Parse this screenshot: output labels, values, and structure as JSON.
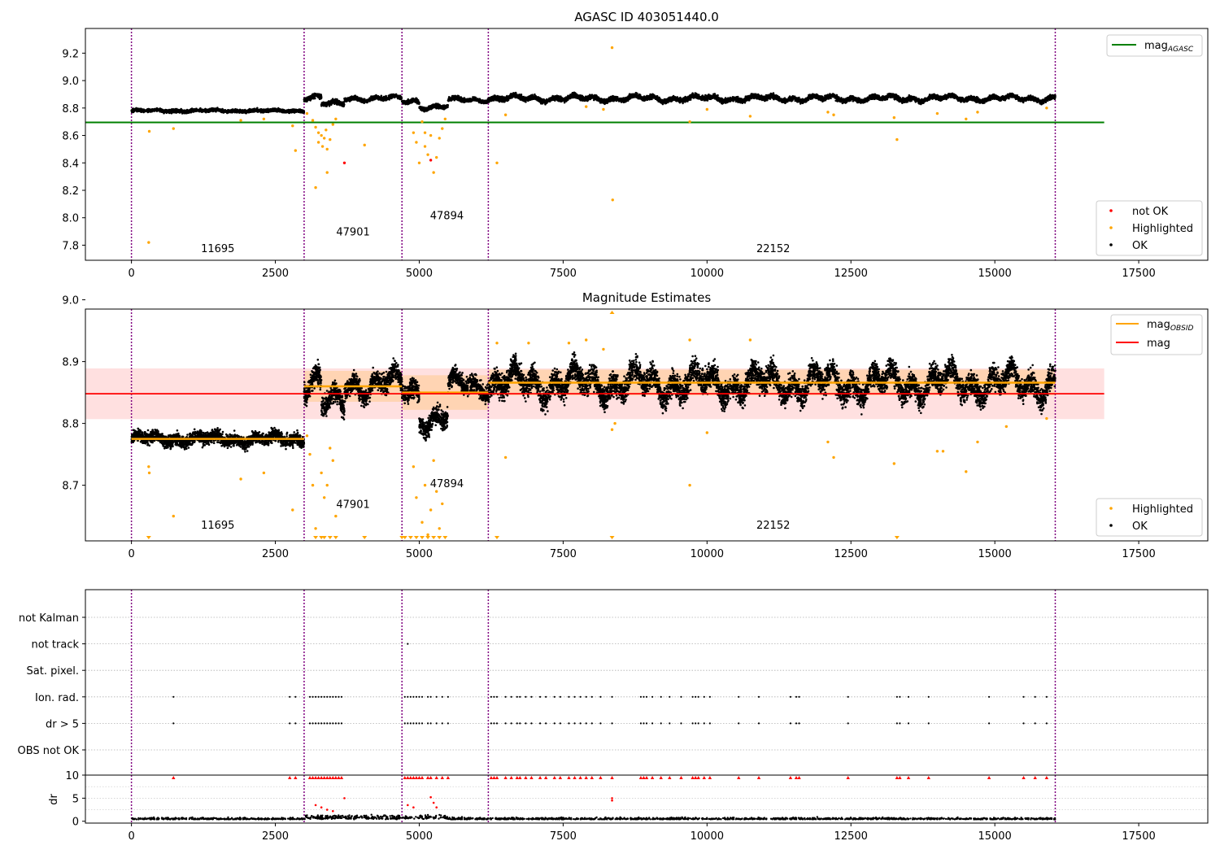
{
  "chart_data": [
    {
      "type": "scatter",
      "title": "AGASC ID 403051440.0",
      "xlim": [
        -800,
        18700
      ],
      "ylim": [
        7.69,
        9.38
      ],
      "xticks": [
        0,
        2500,
        5000,
        7500,
        10000,
        12500,
        15000,
        17500
      ],
      "yticks": [
        7.8,
        8.0,
        8.2,
        8.4,
        8.6,
        8.8,
        9.0,
        9.2
      ],
      "obs_boundaries": [
        0,
        3000,
        4700,
        6200,
        16050
      ],
      "obs_labels": [
        {
          "text": "11695",
          "x": 1500,
          "y": 7.75
        },
        {
          "text": "47901",
          "x": 3850,
          "y": 7.87
        },
        {
          "text": "47894",
          "x": 5480,
          "y": 7.99
        },
        {
          "text": "22152",
          "x": 11150,
          "y": 7.75
        }
      ],
      "hlines": [
        {
          "name": "mag",
          "sub": "AGASC",
          "y": 8.695,
          "x0": -800,
          "x1": 16900,
          "color": "#008000"
        }
      ],
      "legend_upper": [
        {
          "label": "mag",
          "sub": "AGASC",
          "color": "#008000"
        }
      ],
      "legend_lower": [
        {
          "label": "not OK",
          "color": "#ff0000"
        },
        {
          "label": "Highlighted",
          "color": "#ffa500"
        },
        {
          "label": "OK",
          "color": "#000000"
        }
      ],
      "segments": [
        {
          "x0": 0,
          "x1": 3000,
          "level": 8.78,
          "noise": 0.008,
          "wave": 0.004
        },
        {
          "x0": 3000,
          "x1": 3300,
          "level": 8.88,
          "noise": 0.012,
          "wave": 0.01
        },
        {
          "x0": 3300,
          "x1": 3700,
          "level": 8.83,
          "noise": 0.012,
          "wave": 0.01
        },
        {
          "x0": 3700,
          "x1": 4700,
          "level": 8.87,
          "noise": 0.01,
          "wave": 0.01
        },
        {
          "x0": 4700,
          "x1": 5000,
          "level": 8.85,
          "noise": 0.01,
          "wave": 0.015
        },
        {
          "x0": 5000,
          "x1": 5500,
          "level": 8.81,
          "noise": 0.01,
          "wave": 0.01
        },
        {
          "x0": 5500,
          "x1": 6200,
          "level": 8.86,
          "noise": 0.01,
          "wave": 0.008
        },
        {
          "x0": 6200,
          "x1": 16050,
          "level": 8.87,
          "noise": 0.012,
          "wave": 0.012
        }
      ],
      "highlighted_points": [
        [
          300,
          7.82
        ],
        [
          310,
          8.63
        ],
        [
          730,
          8.65
        ],
        [
          1900,
          8.71
        ],
        [
          2300,
          8.72
        ],
        [
          2800,
          8.67
        ],
        [
          2850,
          8.49
        ],
        [
          3050,
          8.76
        ],
        [
          3150,
          8.71
        ],
        [
          3200,
          8.66
        ],
        [
          3250,
          8.62
        ],
        [
          3250,
          8.55
        ],
        [
          3300,
          8.6
        ],
        [
          3320,
          8.52
        ],
        [
          3350,
          8.58
        ],
        [
          3380,
          8.64
        ],
        [
          3400,
          8.5
        ],
        [
          3400,
          8.33
        ],
        [
          3450,
          8.57
        ],
        [
          3500,
          8.68
        ],
        [
          3550,
          8.72
        ],
        [
          3200,
          8.22
        ],
        [
          4050,
          8.53
        ],
        [
          4900,
          8.62
        ],
        [
          4950,
          8.55
        ],
        [
          5000,
          8.4
        ],
        [
          5050,
          8.7
        ],
        [
          5100,
          8.52
        ],
        [
          5150,
          8.46
        ],
        [
          5200,
          8.6
        ],
        [
          5250,
          8.33
        ],
        [
          5300,
          8.44
        ],
        [
          5350,
          8.58
        ],
        [
          5400,
          8.65
        ],
        [
          5100,
          8.62
        ],
        [
          5450,
          8.72
        ],
        [
          6350,
          8.4
        ],
        [
          6500,
          8.75
        ],
        [
          8350,
          9.24
        ],
        [
          8360,
          8.13
        ],
        [
          9700,
          8.7
        ],
        [
          10000,
          8.79
        ],
        [
          10750,
          8.74
        ],
        [
          12100,
          8.77
        ],
        [
          12200,
          8.75
        ],
        [
          13300,
          8.57
        ],
        [
          13250,
          8.73
        ],
        [
          14000,
          8.76
        ],
        [
          14500,
          8.72
        ],
        [
          14700,
          8.77
        ],
        [
          15900,
          8.8
        ],
        [
          7900,
          8.81
        ],
        [
          8200,
          8.79
        ]
      ],
      "notok_points": [
        [
          3700,
          8.4
        ],
        [
          5200,
          8.42
        ]
      ]
    },
    {
      "type": "scatter",
      "title": "Magnitude Estimates",
      "xlim": [
        -800,
        18700
      ],
      "ylim": [
        8.61,
        8.985
      ],
      "xticks": [
        0,
        2500,
        5000,
        7500,
        10000,
        12500,
        15000,
        17500
      ],
      "yticks": [
        8.7,
        8.8,
        8.9,
        9.0
      ],
      "obs_boundaries": [
        0,
        3000,
        4700,
        6200,
        16050
      ],
      "obs_labels": [
        {
          "text": "11695",
          "x": 1500,
          "y": 8.63
        },
        {
          "text": "47901",
          "x": 3850,
          "y": 8.663
        },
        {
          "text": "47894",
          "x": 5480,
          "y": 8.697
        },
        {
          "text": "22152",
          "x": 11150,
          "y": 8.63
        }
      ],
      "mag_line": {
        "y": 8.848,
        "band": [
          8.807,
          8.889
        ],
        "x0": -800,
        "x1": 16900,
        "color": "#ff0000"
      },
      "obsid_mags": [
        {
          "x0": 0,
          "x1": 3000,
          "y": 8.775,
          "band": [
            8.77,
            8.78
          ]
        },
        {
          "x0": 3000,
          "x1": 4700,
          "y": 8.86,
          "band": [
            8.835,
            8.885
          ]
        },
        {
          "x0": 4700,
          "x1": 6200,
          "y": 8.85,
          "band": [
            8.822,
            8.878
          ]
        },
        {
          "x0": 6200,
          "x1": 16050,
          "y": 8.866,
          "band": [
            8.845,
            8.887
          ]
        }
      ],
      "legend_upper": [
        {
          "label": "mag",
          "sub": "OBSID",
          "color": "#ffa500"
        },
        {
          "label": "mag",
          "sub": "",
          "color": "#ff0000"
        }
      ],
      "legend_lower": [
        {
          "label": "Highlighted",
          "color": "#ffa500"
        },
        {
          "label": "OK",
          "color": "#000000"
        }
      ],
      "segments": [
        {
          "x0": 0,
          "x1": 3000,
          "level": 8.775,
          "noise": 0.007,
          "wave": 0.004
        },
        {
          "x0": 3000,
          "x1": 3300,
          "level": 8.868,
          "noise": 0.012,
          "wave": 0.012
        },
        {
          "x0": 3300,
          "x1": 3700,
          "level": 8.83,
          "noise": 0.012,
          "wave": 0.012
        },
        {
          "x0": 3700,
          "x1": 4700,
          "level": 8.864,
          "noise": 0.011,
          "wave": 0.012
        },
        {
          "x0": 4700,
          "x1": 5000,
          "level": 8.855,
          "noise": 0.011,
          "wave": 0.012
        },
        {
          "x0": 5000,
          "x1": 5500,
          "level": 8.808,
          "noise": 0.011,
          "wave": 0.01
        },
        {
          "x0": 5500,
          "x1": 6200,
          "level": 8.862,
          "noise": 0.01,
          "wave": 0.008
        },
        {
          "x0": 6200,
          "x1": 16050,
          "level": 8.865,
          "noise": 0.014,
          "wave": 0.014
        }
      ],
      "highlighted_points": [
        [
          300,
          8.73
        ],
        [
          310,
          8.72
        ],
        [
          730,
          8.65
        ],
        [
          1900,
          8.71
        ],
        [
          2300,
          8.72
        ],
        [
          2800,
          8.66
        ],
        [
          3050,
          8.78
        ],
        [
          3100,
          8.75
        ],
        [
          3150,
          8.7
        ],
        [
          3200,
          8.63
        ],
        [
          3300,
          8.72
        ],
        [
          3350,
          8.68
        ],
        [
          3400,
          8.7
        ],
        [
          3450,
          8.76
        ],
        [
          3500,
          8.74
        ],
        [
          3550,
          8.65
        ],
        [
          4900,
          8.73
        ],
        [
          4950,
          8.68
        ],
        [
          5050,
          8.64
        ],
        [
          5100,
          8.7
        ],
        [
          5150,
          8.62
        ],
        [
          5200,
          8.66
        ],
        [
          5250,
          8.74
        ],
        [
          5300,
          8.69
        ],
        [
          5350,
          8.63
        ],
        [
          5400,
          8.67
        ],
        [
          6350,
          8.93
        ],
        [
          6500,
          8.745
        ],
        [
          6900,
          8.93
        ],
        [
          7600,
          8.93
        ],
        [
          7900,
          8.935
        ],
        [
          8200,
          8.92
        ],
        [
          8350,
          8.79
        ],
        [
          8400,
          8.8
        ],
        [
          9700,
          8.7
        ],
        [
          9700,
          8.935
        ],
        [
          10000,
          8.785
        ],
        [
          10750,
          8.935
        ],
        [
          12100,
          8.77
        ],
        [
          12200,
          8.745
        ],
        [
          13250,
          8.735
        ],
        [
          14000,
          8.755
        ],
        [
          14100,
          8.755
        ],
        [
          14500,
          8.722
        ],
        [
          14700,
          8.77
        ],
        [
          15200,
          8.795
        ],
        [
          15900,
          8.808
        ]
      ],
      "clipped_points": [
        300,
        3200,
        3300,
        3350,
        3450,
        3550,
        4050,
        4700,
        4750,
        4850,
        4950,
        5050,
        5150,
        5250,
        5350,
        5450,
        6350,
        8350,
        13300
      ],
      "clipped_top": [
        8350
      ]
    },
    {
      "type": "scatter",
      "title": "",
      "xlim": [
        -800,
        18700
      ],
      "xticks": [
        0,
        2500,
        5000,
        7500,
        10000,
        12500,
        15000,
        17500
      ],
      "obs_boundaries": [
        0,
        3000,
        4700,
        6200,
        16050
      ],
      "flag_rows": [
        "not Kalman",
        "not track",
        "Sat. pixel.",
        "Ion. rad.",
        "dr > 5",
        "OBS not OK"
      ],
      "flag_points": {
        "not track": [
          4800
        ],
        "Ion. rad.": [
          730,
          2750,
          2850,
          3100,
          3150,
          3200,
          3250,
          3300,
          3350,
          3400,
          3450,
          3500,
          3550,
          3600,
          3650,
          4750,
          4800,
          4850,
          4900,
          4950,
          5000,
          5050,
          5150,
          5200,
          5300,
          5400,
          5500,
          6250,
          6300,
          6350,
          6500,
          6600,
          6700,
          6750,
          6850,
          6950,
          7100,
          7200,
          7350,
          7450,
          7600,
          7700,
          7800,
          7900,
          8000,
          8150,
          8350,
          8850,
          8900,
          8950,
          9050,
          9200,
          9350,
          9550,
          9750,
          9800,
          9850,
          9950,
          10050,
          10550,
          10900,
          11450,
          11550,
          11600,
          12450,
          13300,
          13350,
          13500,
          13850,
          14900,
          15500,
          15700,
          15900
        ],
        "dr > 5": [
          730,
          2750,
          2850,
          3100,
          3150,
          3200,
          3250,
          3300,
          3350,
          3400,
          3450,
          3500,
          3550,
          3600,
          3650,
          4750,
          4800,
          4850,
          4900,
          4950,
          5000,
          5050,
          5150,
          5200,
          5300,
          5400,
          5500,
          6250,
          6300,
          6350,
          6500,
          6600,
          6700,
          6750,
          6850,
          6950,
          7100,
          7200,
          7350,
          7450,
          7600,
          7700,
          7800,
          7900,
          8000,
          8150,
          8350,
          8850,
          8900,
          8950,
          9050,
          9200,
          9350,
          9550,
          9750,
          9800,
          9850,
          9950,
          10050,
          10550,
          10900,
          11450,
          11550,
          11600,
          12450,
          13300,
          13350,
          13500,
          13850,
          14900,
          15500,
          15700,
          15900
        ]
      }
    },
    {
      "type": "scatter",
      "title": "",
      "ylabel": "dr",
      "xlim": [
        -800,
        18700
      ],
      "ylim": [
        -0.4,
        10
      ],
      "xticks": [
        0,
        2500,
        5000,
        7500,
        10000,
        12500,
        15000,
        17500
      ],
      "yticks": [
        0,
        5,
        10
      ],
      "obs_boundaries": [
        0,
        3000,
        4700,
        6200,
        16050
      ],
      "baseline": 0.4,
      "clipped_red": [
        730,
        2750,
        2850,
        3100,
        3150,
        3200,
        3250,
        3300,
        3350,
        3400,
        3450,
        3500,
        3550,
        3600,
        3650,
        4750,
        4800,
        4850,
        4900,
        4950,
        5000,
        5050,
        5150,
        5200,
        5300,
        5400,
        5500,
        6250,
        6300,
        6350,
        6500,
        6600,
        6700,
        6750,
        6850,
        6950,
        7100,
        7200,
        7350,
        7450,
        7600,
        7700,
        7800,
        7900,
        8000,
        8150,
        8350,
        8850,
        8900,
        8950,
        9050,
        9200,
        9350,
        9550,
        9750,
        9800,
        9850,
        9950,
        10050,
        10550,
        10900,
        11450,
        11550,
        11600,
        12450,
        13300,
        13350,
        13500,
        13850,
        14900,
        15500,
        15700,
        15900
      ],
      "red_points": [
        [
          3200,
          3.5
        ],
        [
          3300,
          3.0
        ],
        [
          3400,
          2.5
        ],
        [
          3500,
          2.2
        ],
        [
          3700,
          5.0
        ],
        [
          4800,
          3.5
        ],
        [
          4900,
          3.0
        ],
        [
          5200,
          5.2
        ],
        [
          5250,
          4.0
        ],
        [
          5300,
          3.0
        ],
        [
          8350,
          4.5
        ],
        [
          8350,
          5.0
        ]
      ]
    }
  ]
}
